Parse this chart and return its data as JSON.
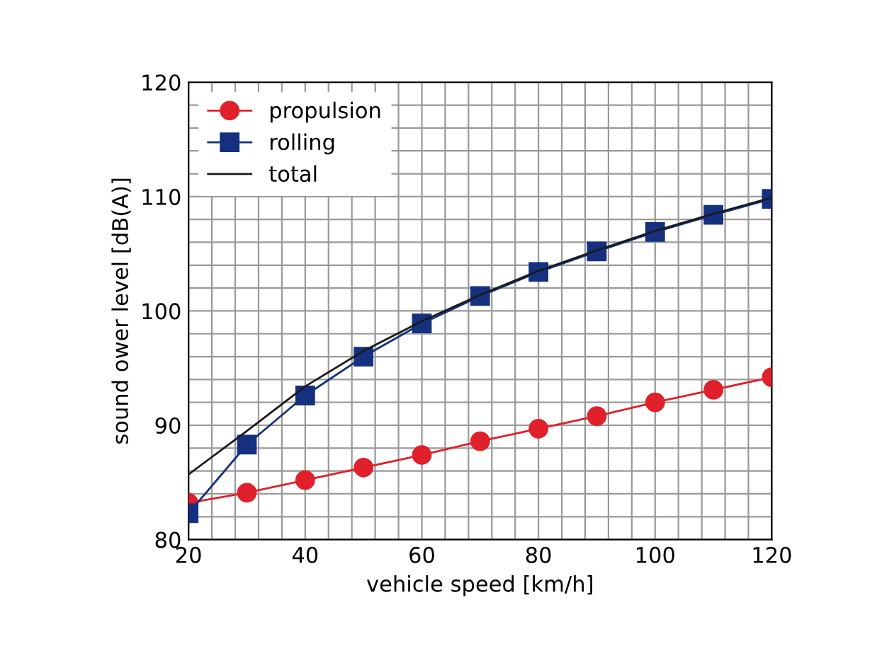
{
  "chart_data": {
    "type": "line",
    "xlabel": "vehicle speed [km/h]",
    "ylabel": "sound ower level [dB(A)]",
    "x": [
      20,
      30,
      40,
      50,
      60,
      70,
      80,
      90,
      100,
      110,
      120
    ],
    "series": [
      {
        "name": "propulsion",
        "color": "#e0202a",
        "marker": "circle",
        "values": [
          83.2,
          84.1,
          85.2,
          86.3,
          87.4,
          88.6,
          89.7,
          90.8,
          92.0,
          93.1,
          94.2
        ]
      },
      {
        "name": "rolling",
        "color": "#14307f",
        "marker": "square",
        "values": [
          82.3,
          88.3,
          92.6,
          96.0,
          98.9,
          101.3,
          103.4,
          105.2,
          106.9,
          108.4,
          109.8
        ]
      },
      {
        "name": "total",
        "color": "#1a1a1a",
        "marker": "none",
        "values": [
          85.7,
          89.5,
          93.4,
          96.5,
          99.1,
          101.4,
          103.5,
          105.3,
          107.0,
          108.5,
          109.9
        ]
      }
    ],
    "xlim": [
      20,
      120
    ],
    "ylim": [
      80,
      120
    ],
    "xticks": [
      20,
      {
        "value": 24,
        "label": null
      },
      {
        "value": 28,
        "label": null
      },
      {
        "value": 32,
        "label": null
      },
      {
        "value": 36,
        "label": null
      },
      40,
      {
        "value": 44,
        "label": null
      },
      {
        "value": 48,
        "label": null
      },
      {
        "value": 52,
        "label": null
      },
      {
        "value": 56,
        "label": null
      },
      60,
      {
        "value": 64,
        "label": null
      },
      {
        "value": 68,
        "label": null
      },
      {
        "value": 72,
        "label": null
      },
      {
        "value": 76,
        "label": null
      },
      80,
      {
        "value": 84,
        "label": null
      },
      {
        "value": 88,
        "label": null
      },
      {
        "value": 92,
        "label": null
      },
      {
        "value": 96,
        "label": null
      },
      100,
      {
        "value": 104,
        "label": null
      },
      {
        "value": 108,
        "label": null
      },
      {
        "value": 112,
        "label": null
      },
      {
        "value": 116,
        "label": null
      },
      120
    ],
    "yticks": [
      80,
      {
        "value": 82,
        "label": null
      },
      {
        "value": 84,
        "label": null
      },
      {
        "value": 86,
        "label": null
      },
      {
        "value": 88,
        "label": null
      },
      90,
      {
        "value": 92,
        "label": null
      },
      {
        "value": 94,
        "label": null
      },
      {
        "value": 96,
        "label": null
      },
      {
        "value": 98,
        "label": null
      },
      100,
      {
        "value": 102,
        "label": null
      },
      {
        "value": 104,
        "label": null
      },
      {
        "value": 106,
        "label": null
      },
      {
        "value": 108,
        "label": null
      },
      110,
      {
        "value": 112,
        "label": null
      },
      {
        "value": 114,
        "label": null
      },
      {
        "value": 116,
        "label": null
      },
      {
        "value": 118,
        "label": null
      },
      120
    ],
    "grid": true,
    "legend": "top left"
  }
}
